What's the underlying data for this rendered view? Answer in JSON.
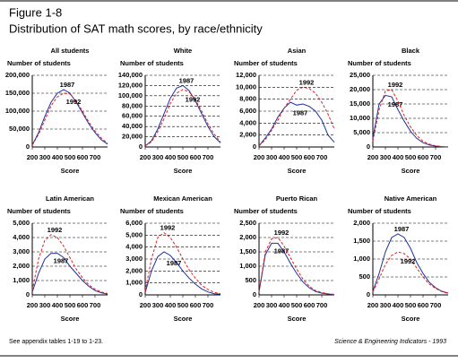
{
  "figure": {
    "label": "Figure 1-8",
    "title": "Distribution of SAT math scores, by race/ethnicity",
    "note": "See appendix tables 1-19 to 1-23.",
    "source": "Science & Engineering Indicators - 1993"
  },
  "chart_data": [
    {
      "type": "line",
      "title": "All students",
      "y_label": "Number of students",
      "x_label": "Score",
      "x": [
        200,
        250,
        300,
        350,
        400,
        450,
        500,
        550,
        600,
        650,
        700,
        750,
        800
      ],
      "xlim": [
        200,
        800
      ],
      "xticks": [
        200,
        300,
        400,
        500,
        600,
        700
      ],
      "ylim": [
        0,
        200000
      ],
      "yticks": [
        0,
        {
          "value": 50000,
          "label": "50,000"
        },
        {
          "value": 100000,
          "label": "100,000"
        },
        {
          "value": 150000,
          "label": "150,000"
        },
        {
          "value": 200000,
          "label": "200,000"
        }
      ],
      "grid": true,
      "series": [
        {
          "name": "1987",
          "color": "#1f2fa0",
          "values": [
            5000,
            40000,
            85000,
            125000,
            150000,
            160000,
            150000,
            125000,
            95000,
            65000,
            40000,
            20000,
            8000
          ]
        },
        {
          "name": "1992",
          "color": "#e02020",
          "values": [
            5000,
            35000,
            75000,
            115000,
            140000,
            150000,
            148000,
            128000,
            100000,
            70000,
            45000,
            25000,
            10000
          ]
        }
      ]
    },
    {
      "type": "line",
      "title": "White",
      "y_label": "Number of students",
      "x_label": "Score",
      "x": [
        200,
        250,
        300,
        350,
        400,
        450,
        500,
        550,
        600,
        650,
        700,
        750,
        800
      ],
      "xlim": [
        200,
        800
      ],
      "xticks": [
        200,
        300,
        400,
        500,
        600,
        700
      ],
      "ylim": [
        0,
        140000
      ],
      "yticks": [
        0,
        {
          "value": 20000,
          "label": "20,000"
        },
        {
          "value": 40000,
          "label": "40,000"
        },
        {
          "value": 60000,
          "label": "60,000"
        },
        {
          "value": 80000,
          "label": "80,000"
        },
        {
          "value": 100000,
          "label": "100,000"
        },
        {
          "value": 120000,
          "label": "120,000"
        },
        {
          "value": 140000,
          "label": "140,000"
        }
      ],
      "grid": true,
      "series": [
        {
          "name": "1987",
          "color": "#1f2fa0",
          "values": [
            2000,
            12000,
            35000,
            65000,
            95000,
            115000,
            120000,
            110000,
            90000,
            65000,
            40000,
            20000,
            8000
          ]
        },
        {
          "name": "1992",
          "color": "#e02020",
          "values": [
            2000,
            10000,
            30000,
            55000,
            85000,
            105000,
            112000,
            108000,
            92000,
            70000,
            45000,
            25000,
            10000
          ]
        }
      ]
    },
    {
      "type": "line",
      "title": "Asian",
      "y_label": "Number of students",
      "x_label": "Score",
      "x": [
        200,
        250,
        300,
        350,
        400,
        450,
        500,
        550,
        600,
        650,
        700,
        750,
        800
      ],
      "xlim": [
        200,
        800
      ],
      "xticks": [
        200,
        300,
        400,
        500,
        600,
        700
      ],
      "ylim": [
        0,
        12000
      ],
      "yticks": [
        0,
        {
          "value": 2000,
          "label": "2,000"
        },
        {
          "value": 4000,
          "label": "4,000"
        },
        {
          "value": 6000,
          "label": "6,000"
        },
        {
          "value": 8000,
          "label": "8,000"
        },
        {
          "value": 10000,
          "label": "10,000"
        },
        {
          "value": 12000,
          "label": "12,000"
        }
      ],
      "grid": true,
      "series": [
        {
          "name": "1987",
          "color": "#1f2fa0",
          "values": [
            200,
            1500,
            3000,
            5000,
            6500,
            7500,
            7000,
            7200,
            6800,
            6000,
            4500,
            2000,
            800
          ]
        },
        {
          "name": "1992",
          "color": "#e02020",
          "values": [
            200,
            1200,
            2800,
            4500,
            6500,
            8000,
            9500,
            10000,
            9800,
            9000,
            7500,
            5500,
            3000
          ]
        }
      ]
    },
    {
      "type": "line",
      "title": "Black",
      "y_label": "Number of students",
      "x_label": "Score",
      "x": [
        200,
        250,
        300,
        350,
        400,
        450,
        500,
        550,
        600,
        650,
        700,
        750,
        800
      ],
      "xlim": [
        200,
        800
      ],
      "xticks": [
        200,
        300,
        400,
        500,
        600,
        700
      ],
      "ylim": [
        0,
        25000
      ],
      "yticks": [
        0,
        {
          "value": 5000,
          "label": "5,000"
        },
        {
          "value": 10000,
          "label": "10,000"
        },
        {
          "value": 15000,
          "label": "15,000"
        },
        {
          "value": 20000,
          "label": "20,000"
        },
        {
          "value": 25000,
          "label": "25,000"
        }
      ],
      "grid": true,
      "series": [
        {
          "name": "1987",
          "color": "#1f2fa0",
          "values": [
            3000,
            15000,
            18000,
            17500,
            13000,
            9000,
            5500,
            3000,
            1500,
            700,
            300,
            100,
            0
          ]
        },
        {
          "name": "1992",
          "color": "#e02020",
          "values": [
            2000,
            13000,
            19500,
            20000,
            16000,
            11000,
            7000,
            4000,
            2000,
            1000,
            400,
            150,
            50
          ]
        }
      ]
    },
    {
      "type": "line",
      "title": "Latin American",
      "y_label": "Number of students",
      "x_label": "Score",
      "x": [
        200,
        250,
        300,
        350,
        400,
        450,
        500,
        550,
        600,
        650,
        700,
        750,
        800
      ],
      "xlim": [
        200,
        800
      ],
      "xticks": [
        200,
        300,
        400,
        500,
        600,
        700
      ],
      "ylim": [
        0,
        5000
      ],
      "yticks": [
        0,
        {
          "value": 1000,
          "label": "1,000"
        },
        {
          "value": 2000,
          "label": "2,000"
        },
        {
          "value": 3000,
          "label": "3,000"
        },
        {
          "value": 4000,
          "label": "4,000"
        },
        {
          "value": 5000,
          "label": "5,000"
        }
      ],
      "grid": true,
      "series": [
        {
          "name": "1987",
          "color": "#1f2fa0",
          "values": [
            200,
            1500,
            2500,
            2900,
            2900,
            2600,
            2000,
            1500,
            1000,
            600,
            300,
            150,
            50
          ]
        },
        {
          "name": "1992",
          "color": "#e02020",
          "values": [
            300,
            2500,
            3800,
            4200,
            4000,
            3400,
            2600,
            1800,
            1200,
            700,
            400,
            200,
            100
          ]
        }
      ]
    },
    {
      "type": "line",
      "title": "Mexican American",
      "y_label": "Number of students",
      "x_label": "Score",
      "x": [
        200,
        250,
        300,
        350,
        400,
        450,
        500,
        550,
        600,
        650,
        700,
        750,
        800
      ],
      "xlim": [
        200,
        800
      ],
      "xticks": [
        200,
        300,
        400,
        500,
        600,
        700
      ],
      "ylim": [
        0,
        6000
      ],
      "yticks": [
        0,
        {
          "value": 1000,
          "label": "1,000"
        },
        {
          "value": 2000,
          "label": "2,000"
        },
        {
          "value": 3000,
          "label": "3,000"
        },
        {
          "value": 4000,
          "label": "4,000"
        },
        {
          "value": 5000,
          "label": "5,000"
        },
        {
          "value": 6000,
          "label": "6,000"
        }
      ],
      "grid": true,
      "series": [
        {
          "name": "1987",
          "color": "#1f2fa0",
          "values": [
            200,
            2000,
            3200,
            3600,
            3300,
            2700,
            2000,
            1400,
            900,
            500,
            250,
            100,
            50
          ]
        },
        {
          "name": "1992",
          "color": "#e02020",
          "values": [
            300,
            3000,
            4800,
            5200,
            4800,
            4000,
            3000,
            2100,
            1400,
            800,
            450,
            200,
            100
          ]
        }
      ]
    },
    {
      "type": "line",
      "title": "Puerto Rican",
      "y_label": "Number of students",
      "x_label": "Score",
      "x": [
        200,
        250,
        300,
        350,
        400,
        450,
        500,
        550,
        600,
        650,
        700,
        750,
        800
      ],
      "xlim": [
        200,
        800
      ],
      "xticks": [
        200,
        300,
        400,
        500,
        600,
        700
      ],
      "ylim": [
        0,
        2500
      ],
      "yticks": [
        0,
        500,
        {
          "value": 1000,
          "label": "1,000"
        },
        {
          "value": 1500,
          "label": "1,500"
        },
        {
          "value": 2000,
          "label": "2,000"
        },
        {
          "value": 2500,
          "label": "2,500"
        }
      ],
      "grid": true,
      "series": [
        {
          "name": "1987",
          "color": "#1f2fa0",
          "values": [
            100,
            1400,
            1800,
            1800,
            1500,
            1100,
            750,
            450,
            250,
            120,
            60,
            30,
            10
          ]
        },
        {
          "name": "1992",
          "color": "#e02020",
          "values": [
            100,
            1500,
            1950,
            2000,
            1700,
            1300,
            900,
            550,
            300,
            150,
            80,
            40,
            20
          ]
        }
      ]
    },
    {
      "type": "line",
      "title": "Native American",
      "y_label": "Number of students",
      "x_label": "Score",
      "x": [
        200,
        250,
        300,
        350,
        400,
        450,
        500,
        550,
        600,
        650,
        700,
        750,
        800
      ],
      "xlim": [
        200,
        800
      ],
      "xticks": [
        200,
        300,
        400,
        500,
        600,
        700
      ],
      "ylim": [
        0,
        2000
      ],
      "yticks": [
        0,
        500,
        {
          "value": 1000,
          "label": "1,000"
        },
        {
          "value": 1500,
          "label": "1,500"
        },
        {
          "value": 2000,
          "label": "2,000"
        }
      ],
      "grid": true,
      "series": [
        {
          "name": "1987",
          "color": "#1f2fa0",
          "values": [
            100,
            600,
            1200,
            1600,
            1700,
            1600,
            1300,
            900,
            600,
            350,
            200,
            100,
            50
          ]
        },
        {
          "name": "1992",
          "color": "#e02020",
          "values": [
            80,
            450,
            850,
            1100,
            1200,
            1150,
            1000,
            750,
            500,
            300,
            180,
            90,
            40
          ]
        }
      ]
    }
  ]
}
